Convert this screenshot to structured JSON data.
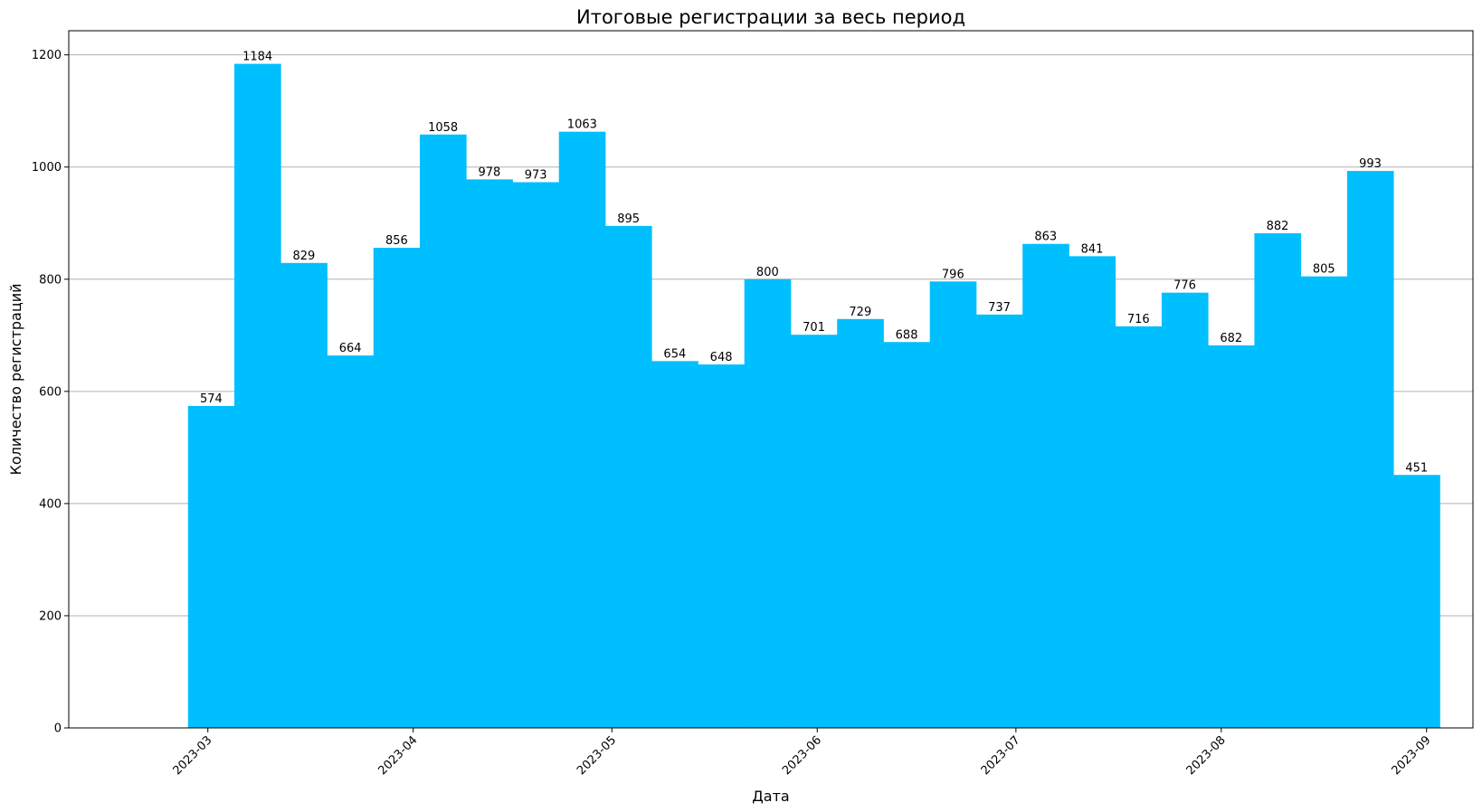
{
  "chart_data": {
    "type": "bar",
    "title": "Итоговые регистрации за весь период",
    "xlabel": "Дата",
    "ylabel": "Количество регистраций",
    "bar_color": "#00bfff",
    "x_unit": "week",
    "week_starts": [
      "2023-02-26",
      "2023-03-05",
      "2023-03-12",
      "2023-03-19",
      "2023-03-26",
      "2023-04-02",
      "2023-04-09",
      "2023-04-16",
      "2023-04-23",
      "2023-04-30",
      "2023-05-07",
      "2023-05-14",
      "2023-05-21",
      "2023-05-28",
      "2023-06-04",
      "2023-06-11",
      "2023-06-18",
      "2023-06-25",
      "2023-07-02",
      "2023-07-09",
      "2023-07-16",
      "2023-07-23",
      "2023-07-30",
      "2023-08-06",
      "2023-08-13",
      "2023-08-20",
      "2023-08-27"
    ],
    "values": [
      574,
      1184,
      829,
      664,
      856,
      1058,
      978,
      973,
      1063,
      895,
      654,
      648,
      800,
      701,
      729,
      688,
      796,
      737,
      863,
      841,
      716,
      776,
      682,
      882,
      805,
      993,
      451
    ],
    "x_ticks": [
      "2023-03",
      "2023-04",
      "2023-05",
      "2023-06",
      "2023-07",
      "2023-08",
      "2023-09"
    ],
    "xlim": [
      "2023-02-08",
      "2023-09-08"
    ],
    "y_ticks": [
      "0",
      "200",
      "400",
      "600",
      "800",
      "1000",
      "1200"
    ],
    "ylim": [
      0,
      1243
    ],
    "grid": "y"
  }
}
